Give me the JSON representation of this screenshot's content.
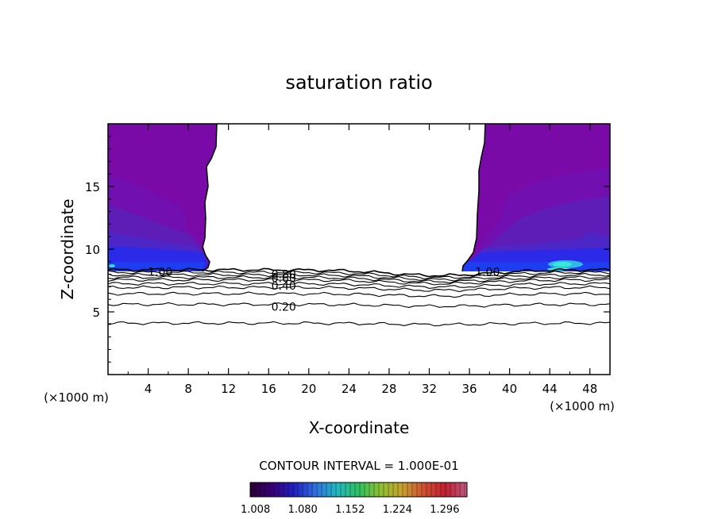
{
  "chart_data": {
    "type": "contour",
    "title": "saturation ratio",
    "xlabel": "X-coordinate",
    "ylabel": "Z-coordinate",
    "x_unit": "(×1000 m)",
    "z_unit": "(×1000 m)",
    "xlim": [
      0,
      50
    ],
    "ylim": [
      0,
      20
    ],
    "x_ticks": [
      4,
      8,
      12,
      16,
      20,
      24,
      28,
      32,
      36,
      40,
      44,
      48
    ],
    "y_ticks": [
      5,
      10,
      15
    ],
    "contour_interval_text": "CONTOUR INTERVAL = 1.000E-01",
    "colorbar": {
      "min": 1.0,
      "max": 1.33,
      "tick_labels": [
        "1.008",
        "1.080",
        "1.152",
        "1.224",
        "1.296"
      ],
      "tick_values": [
        1.008,
        1.08,
        1.152,
        1.224,
        1.296
      ],
      "colors": [
        "#2a0033",
        "#3a0078",
        "#2020c0",
        "#2e6fe0",
        "#22b8c0",
        "#2ec060",
        "#8cc030",
        "#c8a030",
        "#d05030",
        "#c02030",
        "#c05a80"
      ]
    },
    "contour_labels": [
      {
        "text": "1.00",
        "x": 5.2,
        "z": 8.2
      },
      {
        "text": "1.00",
        "x": 37.8,
        "z": 8.2
      },
      {
        "text": "0.80",
        "x": 17.5,
        "z": 8.0
      },
      {
        "text": "0.60",
        "x": 17.5,
        "z": 7.7
      },
      {
        "text": "0.40",
        "x": 17.5,
        "z": 7.1
      },
      {
        "text": "0.20",
        "x": 17.5,
        "z": 5.4
      }
    ],
    "contour_lines": [
      {
        "value": 1.0,
        "z": 8.35
      },
      {
        "value": 0.9,
        "z": 8.15
      },
      {
        "value": 0.8,
        "z": 7.95
      },
      {
        "value": 0.7,
        "z": 7.75
      },
      {
        "value": 0.6,
        "z": 7.55
      },
      {
        "value": 0.5,
        "z": 7.25
      },
      {
        "value": 0.4,
        "z": 6.95
      },
      {
        "value": 0.3,
        "z": 6.45
      },
      {
        "value": 0.2,
        "z": 5.6
      },
      {
        "value": 0.1,
        "z": 4.1
      }
    ],
    "regions": [
      {
        "name": "supersaturated-left",
        "x_range": [
          0,
          10
        ],
        "z_range": [
          8.2,
          20
        ]
      },
      {
        "name": "supersaturated-right",
        "x_range": [
          35.5,
          50
        ],
        "z_range": [
          8.2,
          20
        ]
      }
    ]
  }
}
